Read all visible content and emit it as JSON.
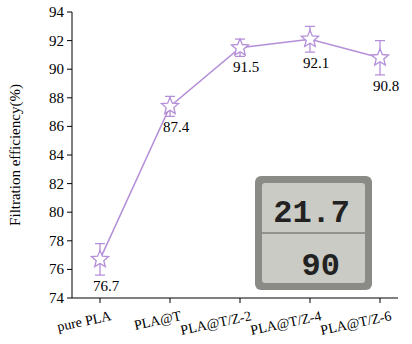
{
  "chart_data": {
    "type": "line",
    "y_label": "Filtration efficiency(%)",
    "categories": [
      "pure PLA",
      "PLA@T",
      "PLA@T/Z-2",
      "PLA@T/Z-4",
      "PLA@T/Z-6"
    ],
    "values": [
      76.7,
      87.4,
      91.5,
      92.1,
      90.8
    ],
    "errors": [
      1.1,
      0.7,
      0.6,
      0.9,
      1.2
    ],
    "color": "#b48fd8",
    "marker": "star",
    "data_labels": true,
    "ylim": [
      74,
      94
    ],
    "yticks": [
      74,
      76,
      78,
      80,
      82,
      84,
      86,
      88,
      90,
      92,
      94
    ],
    "grid": false,
    "annotations": [
      "21.7",
      "90"
    ]
  }
}
